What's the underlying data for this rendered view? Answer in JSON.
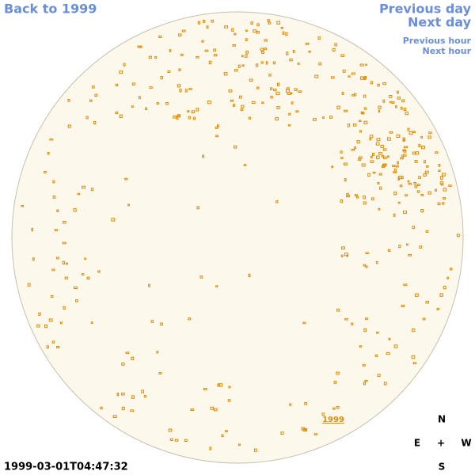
{
  "nav": {
    "back": "Back to 1999",
    "previous_day": "Previous day",
    "next_day": "Next day",
    "previous_hour": "Previous hour",
    "next_hour": "Next hour"
  },
  "map": {
    "label": "1999"
  },
  "timestamp": "1999-03-01T04:47:32",
  "compass": {
    "north": "N",
    "east": "E",
    "center": "+",
    "west": "W",
    "south": "S"
  }
}
